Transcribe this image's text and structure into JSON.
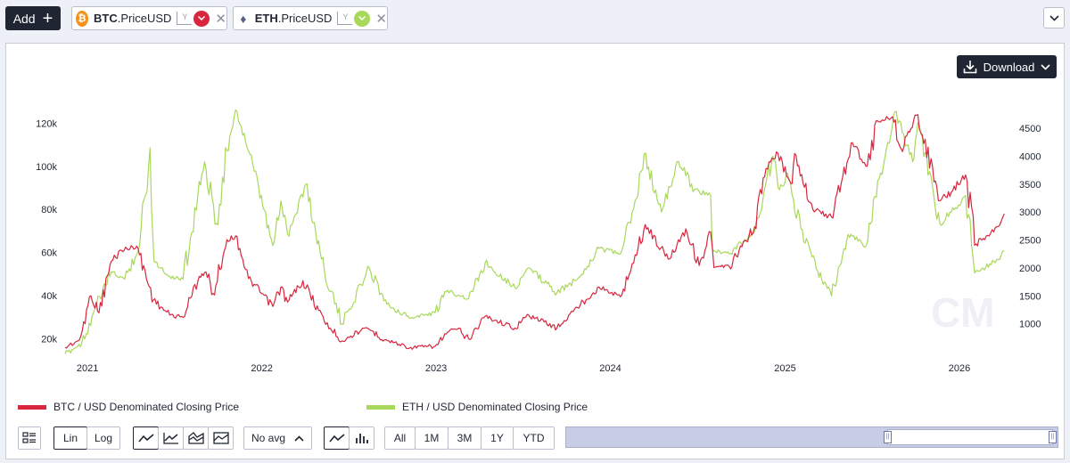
{
  "toolbar": {
    "add_label": "Add",
    "add_icon": "plus-icon",
    "series_chips": [
      {
        "asset": "BTC",
        "metric": ".PriceUSD",
        "icon": "bitcoin-icon",
        "color": "#d7263d",
        "axis_icon": "y-axis-icon"
      },
      {
        "asset": "ETH",
        "metric": ".PriceUSD",
        "icon": "ethereum-icon",
        "color": "#a8d85a",
        "axis_icon": "y-axis-icon"
      }
    ],
    "collapse_icon": "chevron-down-icon"
  },
  "download": {
    "label": "Download",
    "icon": "download-icon"
  },
  "legend": [
    {
      "label": "BTC / USD Denominated Closing Price",
      "color": "#d7263d"
    },
    {
      "label": "ETH / USD Denominated Closing Price",
      "color": "#a8d85a"
    }
  ],
  "controls": {
    "table_icon": "table-icon",
    "scale": [
      "Lin",
      "Log"
    ],
    "scale_selected": "Lin",
    "chart_styles": [
      "line-chart-icon",
      "line-area-chart-icon",
      "stacked-area-icon",
      "area-chart-icon"
    ],
    "average_label": "No avg",
    "type_icons": [
      "line-icon",
      "bar-chart-icon"
    ],
    "ranges": [
      "All",
      "1M",
      "3M",
      "1Y",
      "YTD"
    ]
  },
  "watermark": "CM",
  "chart_data": {
    "type": "line",
    "x_ticks": [
      "2021",
      "2022",
      "2023",
      "2024",
      "2025",
      "2026"
    ],
    "y_left_ticks": [
      "20k",
      "40k",
      "60k",
      "80k",
      "100k",
      "120k"
    ],
    "y_right_ticks": [
      "1000",
      "1500",
      "2000",
      "2500",
      "3000",
      "3500",
      "4000",
      "4500"
    ],
    "ylim_left": [
      14000,
      128000
    ],
    "ylim_right": [
      500,
      4900
    ],
    "xlim": [
      "2020-11-15",
      "2026-04-10"
    ],
    "grid": false,
    "legend_position": "bottom-left",
    "series": [
      {
        "name": "BTC / USD Denominated Closing Price",
        "axis": "left",
        "color": "#d7263d",
        "points": [
          [
            "2020-11-15",
            16000
          ],
          [
            "2020-12-15",
            19500
          ],
          [
            "2021-01-08",
            40000
          ],
          [
            "2021-01-25",
            32000
          ],
          [
            "2021-02-20",
            56000
          ],
          [
            "2021-03-13",
            61000
          ],
          [
            "2021-04-14",
            63000
          ],
          [
            "2021-05-19",
            38000
          ],
          [
            "2021-06-22",
            31000
          ],
          [
            "2021-07-20",
            30000
          ],
          [
            "2021-08-23",
            49000
          ],
          [
            "2021-09-06",
            51000
          ],
          [
            "2021-09-21",
            41000
          ],
          [
            "2021-10-20",
            66000
          ],
          [
            "2021-11-10",
            67500
          ],
          [
            "2021-12-04",
            48000
          ],
          [
            "2022-01-24",
            35000
          ],
          [
            "2022-02-10",
            44000
          ],
          [
            "2022-02-24",
            37000
          ],
          [
            "2022-03-28",
            47000
          ],
          [
            "2022-05-12",
            28000
          ],
          [
            "2022-06-18",
            19000
          ],
          [
            "2022-07-28",
            24000
          ],
          [
            "2022-08-14",
            24400
          ],
          [
            "2022-09-15",
            19500
          ],
          [
            "2022-11-09",
            16000
          ],
          [
            "2022-12-30",
            16500
          ],
          [
            "2023-01-25",
            23000
          ],
          [
            "2023-02-15",
            24500
          ],
          [
            "2023-03-10",
            20000
          ],
          [
            "2023-04-14",
            30500
          ],
          [
            "2023-06-15",
            25000
          ],
          [
            "2023-07-14",
            31000
          ],
          [
            "2023-09-11",
            25000
          ],
          [
            "2023-10-24",
            34500
          ],
          [
            "2023-12-08",
            44000
          ],
          [
            "2024-01-22",
            39500
          ],
          [
            "2024-02-28",
            62000
          ],
          [
            "2024-03-14",
            73000
          ],
          [
            "2024-05-01",
            57000
          ],
          [
            "2024-06-07",
            71000
          ],
          [
            "2024-07-05",
            54000
          ],
          [
            "2024-07-29",
            69500
          ],
          [
            "2024-08-05",
            53000
          ],
          [
            "2024-09-06",
            53500
          ],
          [
            "2024-10-29",
            72000
          ],
          [
            "2024-11-22",
            99000
          ],
          [
            "2024-12-17",
            106000
          ],
          [
            "2025-01-13",
            92000
          ],
          [
            "2025-01-21",
            106000
          ],
          [
            "2025-02-28",
            80000
          ],
          [
            "2025-04-08",
            76500
          ],
          [
            "2025-05-22",
            111000
          ],
          [
            "2025-06-22",
            100000
          ],
          [
            "2025-07-14",
            121000
          ],
          [
            "2025-08-14",
            123000
          ],
          [
            "2025-09-01",
            108000
          ],
          [
            "2025-10-06",
            124000
          ],
          [
            "2025-11-21",
            84000
          ],
          [
            "2025-12-15",
            88000
          ],
          [
            "2026-01-14",
            96000
          ],
          [
            "2026-02-05",
            64000
          ],
          [
            "2026-03-01",
            68000
          ],
          [
            "2026-03-20",
            72000
          ],
          [
            "2026-04-05",
            78000
          ]
        ]
      },
      {
        "name": "ETH / USD Denominated Closing Price",
        "axis": "right",
        "color": "#a8d85a",
        "points": [
          [
            "2020-11-15",
            460
          ],
          [
            "2020-12-20",
            650
          ],
          [
            "2021-01-20",
            1350
          ],
          [
            "2021-02-20",
            1930
          ],
          [
            "2021-03-20",
            1800
          ],
          [
            "2021-04-20",
            2400
          ],
          [
            "2021-05-12",
            4150
          ],
          [
            "2021-05-23",
            2100
          ],
          [
            "2021-06-22",
            1850
          ],
          [
            "2021-07-20",
            1800
          ],
          [
            "2021-08-20",
            3300
          ],
          [
            "2021-09-03",
            3900
          ],
          [
            "2021-09-28",
            2800
          ],
          [
            "2021-10-20",
            4100
          ],
          [
            "2021-11-10",
            4800
          ],
          [
            "2021-12-04",
            4100
          ],
          [
            "2022-01-24",
            2400
          ],
          [
            "2022-02-10",
            3200
          ],
          [
            "2022-02-24",
            2600
          ],
          [
            "2022-04-03",
            3500
          ],
          [
            "2022-05-12",
            1950
          ],
          [
            "2022-06-18",
            1000
          ],
          [
            "2022-07-28",
            1700
          ],
          [
            "2022-08-14",
            2000
          ],
          [
            "2022-09-20",
            1350
          ],
          [
            "2022-11-09",
            1100
          ],
          [
            "2022-12-30",
            1200
          ],
          [
            "2023-01-25",
            1600
          ],
          [
            "2023-03-10",
            1450
          ],
          [
            "2023-04-14",
            2100
          ],
          [
            "2023-06-15",
            1650
          ],
          [
            "2023-07-14",
            2000
          ],
          [
            "2023-09-11",
            1550
          ],
          [
            "2023-10-24",
            1800
          ],
          [
            "2023-12-08",
            2350
          ],
          [
            "2024-01-22",
            2250
          ],
          [
            "2024-02-28",
            3300
          ],
          [
            "2024-03-12",
            4050
          ],
          [
            "2024-04-17",
            3000
          ],
          [
            "2024-05-23",
            3900
          ],
          [
            "2024-06-25",
            3400
          ],
          [
            "2024-07-29",
            3300
          ],
          [
            "2024-08-05",
            2300
          ],
          [
            "2024-09-06",
            2250
          ],
          [
            "2024-10-29",
            2650
          ],
          [
            "2024-12-06",
            4000
          ],
          [
            "2024-12-20",
            3400
          ],
          [
            "2025-01-06",
            3700
          ],
          [
            "2025-02-03",
            2700
          ],
          [
            "2025-03-10",
            1950
          ],
          [
            "2025-04-08",
            1500
          ],
          [
            "2025-05-13",
            2600
          ],
          [
            "2025-06-20",
            2400
          ],
          [
            "2025-07-20",
            3700
          ],
          [
            "2025-08-22",
            4800
          ],
          [
            "2025-09-25",
            3900
          ],
          [
            "2025-10-06",
            4600
          ],
          [
            "2025-11-21",
            2800
          ],
          [
            "2025-12-15",
            3000
          ],
          [
            "2026-01-14",
            3300
          ],
          [
            "2026-02-05",
            1950
          ],
          [
            "2026-02-25",
            2000
          ],
          [
            "2026-03-20",
            2150
          ],
          [
            "2026-04-05",
            2300
          ]
        ]
      }
    ]
  }
}
